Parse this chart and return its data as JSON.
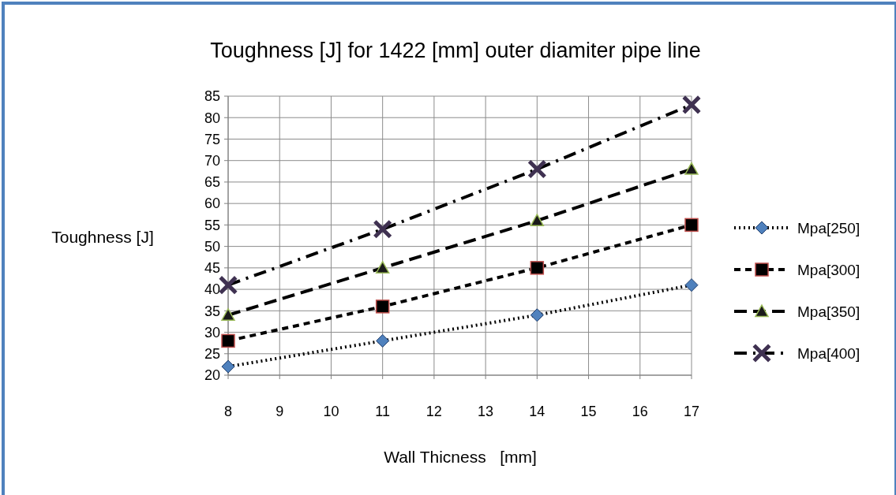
{
  "chart_data": {
    "type": "line",
    "title": "Toughness [J] for 1422 [mm] outer diamiter pipe line",
    "xlabel": "Wall Thicness   [mm]",
    "ylabel": "Toughness [J]",
    "x": [
      8,
      11,
      14,
      17
    ],
    "series": [
      {
        "name": "Mpa[250]",
        "color": "#4f81bd",
        "values": [
          22,
          28,
          34,
          41
        ],
        "marker": "diamond",
        "line_style": "dotted"
      },
      {
        "name": "Mpa[300]",
        "color": "#000000",
        "values": [
          28,
          36,
          45,
          55
        ],
        "marker": "square",
        "line_style": "dashed"
      },
      {
        "name": "Mpa[350]",
        "color": "#1a1a1a",
        "values": [
          34,
          45,
          56,
          68
        ],
        "marker": "triangle",
        "line_style": "dashed"
      },
      {
        "name": "Mpa[400]",
        "color": "#3f3151",
        "values": [
          41,
          54,
          68,
          83
        ],
        "marker": "cross",
        "line_style": "dashed"
      }
    ],
    "xlim": [
      8,
      17
    ],
    "xticks": [
      8,
      9,
      10,
      11,
      12,
      13,
      14,
      15,
      16,
      17
    ],
    "ylim": [
      20,
      85
    ],
    "yticks": [
      20,
      25,
      30,
      35,
      40,
      45,
      50,
      55,
      60,
      65,
      70,
      75,
      80,
      85
    ],
    "grid": true,
    "legend": "right"
  }
}
